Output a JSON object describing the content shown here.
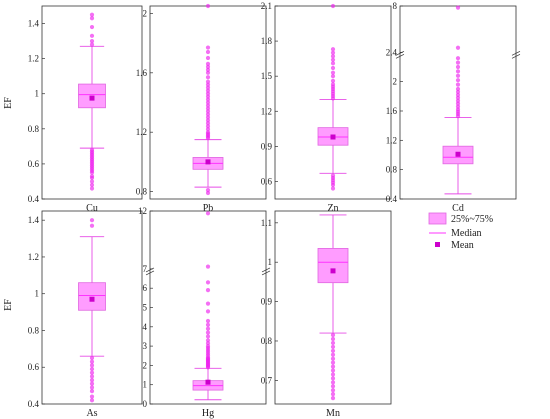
{
  "figure": {
    "y_axis_label": "EF",
    "legend": {
      "placement": "right",
      "items": [
        {
          "label": "25%~75%",
          "kind": "box"
        },
        {
          "label": "Median",
          "kind": "line"
        },
        {
          "label": "Mean",
          "kind": "marker"
        }
      ]
    },
    "colors": {
      "box_fill": "#ff9cff",
      "box_edge": "#e066e0",
      "median": "#ff33ff",
      "whisker": "#e64ce6",
      "mean": "#cc00cc",
      "outlier": "#ee22ee",
      "axis": "#333333"
    }
  },
  "chart_data": [
    {
      "type": "box",
      "xlabel": "Cu",
      "ylabel": "EF",
      "ylim": [
        0.4,
        1.5
      ],
      "yticks": [
        0.4,
        0.6,
        0.8,
        1.0,
        1.2,
        1.4
      ],
      "whisker_low": 0.69,
      "q1": 0.92,
      "median": 0.995,
      "q3": 1.055,
      "whisker_high": 1.27,
      "mean": 0.975,
      "outliers": [
        0.46,
        0.48,
        0.5,
        0.52,
        0.53,
        0.55,
        0.56,
        0.57,
        0.58,
        0.59,
        0.6,
        0.61,
        0.62,
        0.63,
        0.64,
        0.65,
        0.66,
        0.67,
        0.68,
        1.28,
        1.3,
        1.33,
        1.38,
        1.43,
        1.45
      ]
    },
    {
      "type": "box",
      "xlabel": "Pb",
      "ylabel": "",
      "ylim": [
        0.75,
        2.05
      ],
      "yticks": [
        0.8,
        1.2,
        1.6,
        2.0
      ],
      "whisker_low": 0.83,
      "q1": 0.95,
      "median": 0.99,
      "q3": 1.03,
      "whisker_high": 1.15,
      "mean": 1.0,
      "outliers": [
        0.79,
        0.81,
        1.16,
        1.17,
        1.18,
        1.19,
        1.2,
        1.22,
        1.24,
        1.26,
        1.28,
        1.3,
        1.32,
        1.34,
        1.36,
        1.38,
        1.4,
        1.42,
        1.44,
        1.46,
        1.48,
        1.5,
        1.52,
        1.54,
        1.57,
        1.6,
        1.62,
        1.64,
        1.66,
        1.7,
        1.74,
        1.77,
        2.06
      ]
    },
    {
      "type": "box",
      "xlabel": "Zn",
      "ylabel": "",
      "ylim": [
        0.45,
        2.1
      ],
      "yticks": [
        0.6,
        0.9,
        1.2,
        1.5,
        1.8,
        2.1
      ],
      "whisker_low": 0.67,
      "q1": 0.91,
      "median": 0.98,
      "q3": 1.06,
      "whisker_high": 1.3,
      "mean": 0.98,
      "outliers": [
        0.54,
        0.57,
        0.59,
        0.61,
        0.63,
        0.65,
        1.31,
        1.33,
        1.35,
        1.37,
        1.39,
        1.41,
        1.43,
        1.46,
        1.5,
        1.53,
        1.57,
        1.61,
        1.64,
        1.67,
        1.7,
        1.73,
        2.13
      ]
    },
    {
      "type": "box",
      "xlabel": "Cd",
      "ylabel": "",
      "ylim": [
        0.4,
        8.0
      ],
      "yticks": [
        0.4,
        0.8,
        1.2,
        1.6,
        2.0,
        2.4,
        8.0
      ],
      "axis_break": "between 2.4 and 8.0",
      "whisker_low": 0.47,
      "q1": 0.88,
      "median": 0.97,
      "q3": 1.12,
      "whisker_high": 1.51,
      "mean": 1.01,
      "outliers": [
        1.53,
        1.56,
        1.59,
        1.62,
        1.66,
        1.7,
        1.74,
        1.78,
        1.82,
        1.86,
        1.9,
        1.96,
        2.02,
        2.08,
        2.14,
        2.2,
        2.26,
        2.32,
        2.95,
        7.8
      ]
    },
    {
      "type": "box",
      "xlabel": "As",
      "ylabel": "EF",
      "ylim": [
        0.4,
        1.45
      ],
      "yticks": [
        0.4,
        0.6,
        0.8,
        1.0,
        1.2,
        1.4
      ],
      "whisker_low": 0.66,
      "q1": 0.91,
      "median": 0.99,
      "q3": 1.06,
      "whisker_high": 1.31,
      "mean": 0.97,
      "outliers": [
        0.42,
        0.44,
        0.47,
        0.49,
        0.51,
        0.53,
        0.55,
        0.57,
        0.59,
        0.61,
        0.63,
        0.65,
        1.37,
        1.4
      ]
    },
    {
      "type": "box",
      "xlabel": "Hg",
      "ylabel": "",
      "ylim": [
        0,
        12
      ],
      "yticks": [
        0,
        1,
        2,
        3,
        4,
        5,
        6,
        7,
        12
      ],
      "axis_break": "between 7 and 12",
      "whisker_low": 0.22,
      "q1": 0.72,
      "median": 0.95,
      "q3": 1.21,
      "whisker_high": 1.85,
      "mean": 1.13,
      "outliers": [
        1.9,
        1.95,
        2.0,
        2.05,
        2.1,
        2.15,
        2.2,
        2.25,
        2.3,
        2.35,
        2.4,
        2.5,
        2.6,
        2.7,
        2.8,
        2.9,
        3.0,
        3.15,
        3.3,
        3.5,
        3.7,
        3.9,
        4.1,
        4.3,
        4.8,
        5.2,
        5.9,
        6.3,
        7.2,
        11.8
      ]
    },
    {
      "type": "box",
      "xlabel": "Mn",
      "ylabel": "",
      "ylim": [
        0.64,
        1.13
      ],
      "yticks": [
        0.7,
        0.8,
        0.9,
        1.0,
        1.1
      ],
      "whisker_low": 0.82,
      "q1": 0.948,
      "median": 1.0,
      "q3": 1.035,
      "whisker_high": 1.12,
      "mean": 0.978,
      "outliers": [
        0.655,
        0.665,
        0.675,
        0.685,
        0.695,
        0.705,
        0.715,
        0.725,
        0.735,
        0.745,
        0.755,
        0.765,
        0.775,
        0.785,
        0.795,
        0.805,
        0.815
      ]
    }
  ]
}
